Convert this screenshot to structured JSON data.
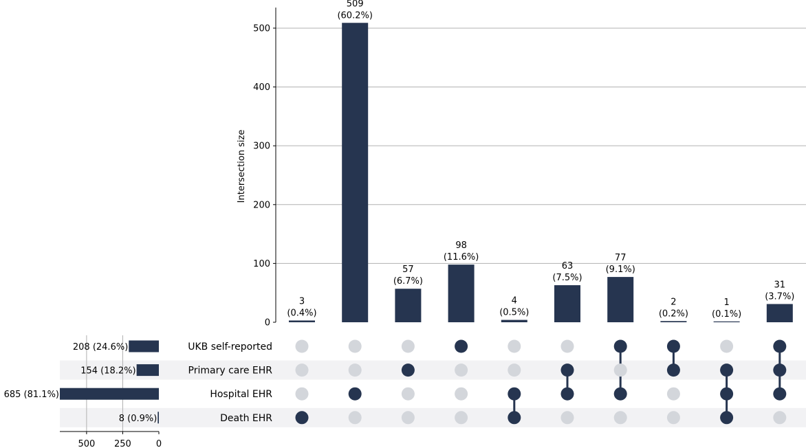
{
  "chart_data": {
    "type": "upset",
    "ylabel": "Intersection size",
    "ylim": [
      0,
      535
    ],
    "y_ticks": [
      0,
      100,
      200,
      300,
      400,
      500
    ],
    "grid": true,
    "bar_color": "#263550",
    "dot_inactive_color": "#d3d6db",
    "stripe_color": "#f2f2f4",
    "sets": [
      {
        "name": "UKB self-reported",
        "size": 208,
        "label": "208 (24.6%)"
      },
      {
        "name": "Primary care EHR",
        "size": 154,
        "label": "154 (18.2%)"
      },
      {
        "name": "Hospital EHR",
        "size": 685,
        "label": "685 (81.1%)"
      },
      {
        "name": "Death EHR",
        "size": 8,
        "label": "8 (0.9%)"
      }
    ],
    "set_size_ticks": [
      500,
      250,
      0
    ],
    "intersections": [
      {
        "value": 3,
        "label": "3",
        "pct": "(0.4%)",
        "members": [
          3
        ]
      },
      {
        "value": 509,
        "label": "509",
        "pct": "(60.2%)",
        "members": [
          2
        ]
      },
      {
        "value": 57,
        "label": "57",
        "pct": "(6.7%)",
        "members": [
          1
        ]
      },
      {
        "value": 98,
        "label": "98",
        "pct": "(11.6%)",
        "members": [
          0
        ]
      },
      {
        "value": 4,
        "label": "4",
        "pct": "(0.5%)",
        "members": [
          2,
          3
        ]
      },
      {
        "value": 63,
        "label": "63",
        "pct": "(7.5%)",
        "members": [
          1,
          2
        ]
      },
      {
        "value": 77,
        "label": "77",
        "pct": "(9.1%)",
        "members": [
          0,
          2
        ]
      },
      {
        "value": 2,
        "label": "2",
        "pct": "(0.2%)",
        "members": [
          0,
          1
        ]
      },
      {
        "value": 1,
        "label": "1",
        "pct": "(0.1%)",
        "members": [
          1,
          2,
          3
        ]
      },
      {
        "value": 31,
        "label": "31",
        "pct": "(3.7%)",
        "members": [
          0,
          1,
          2
        ]
      }
    ]
  }
}
